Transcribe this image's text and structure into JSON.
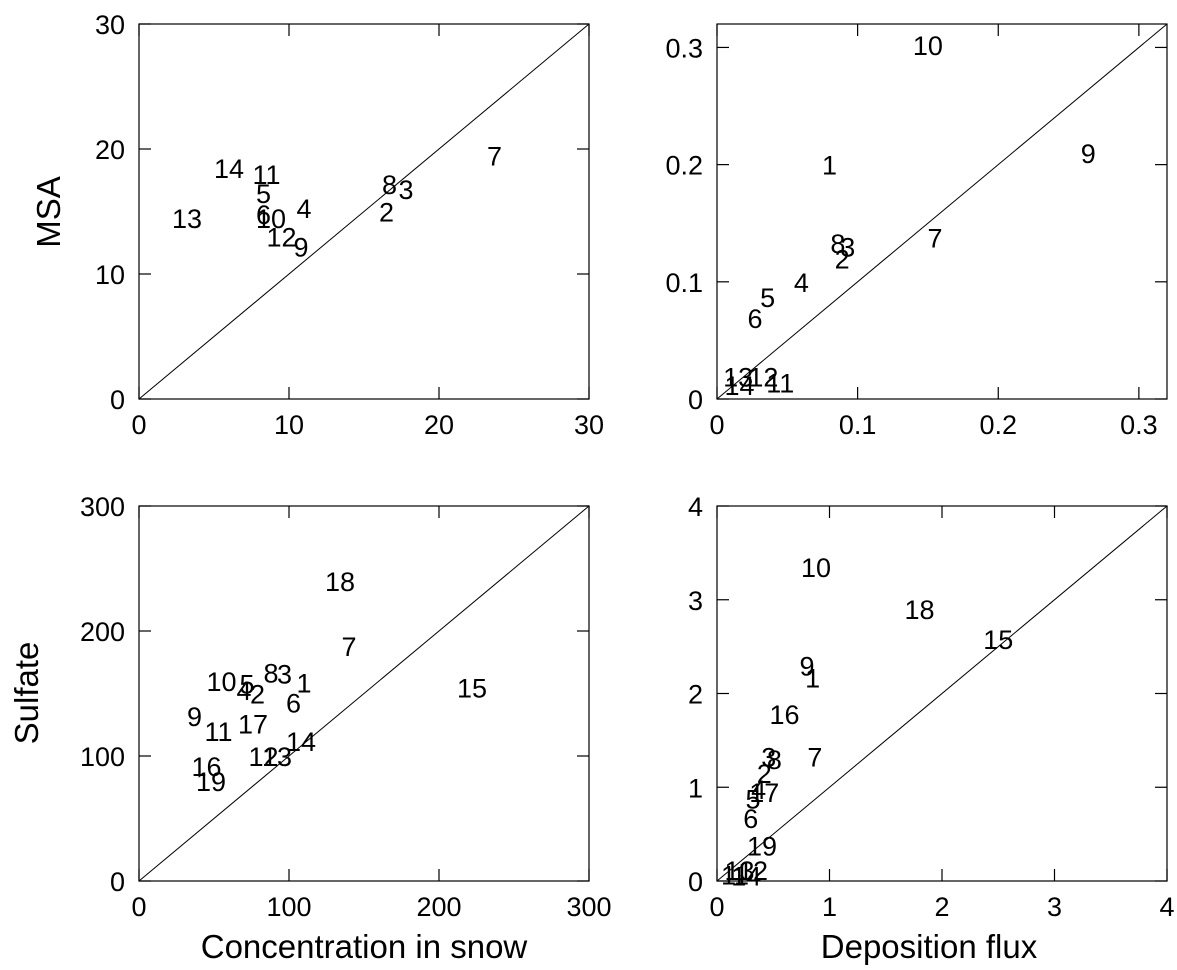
{
  "figure": {
    "row_titles": [
      "MSA",
      "Sulfate"
    ],
    "column_titles": [
      "Concentration in snow",
      "Deposition flux"
    ]
  },
  "chart_data": [
    {
      "type": "scatter",
      "title": "",
      "xlabel": "",
      "ylabel": "MSA",
      "xlim": [
        0,
        30
      ],
      "ylim": [
        0,
        30
      ],
      "xticks": [
        "0",
        "10",
        "20",
        "30"
      ],
      "yticks": [
        "0",
        "10",
        "20",
        "30"
      ],
      "grid": false,
      "reference_line": "1:1",
      "points": [
        {
          "label": "14",
          "x": 6,
          "y": 18.5
        },
        {
          "label": "11",
          "x": 8.5,
          "y": 18
        },
        {
          "label": "5",
          "x": 8.3,
          "y": 16.5
        },
        {
          "label": "13",
          "x": 3.2,
          "y": 14.5
        },
        {
          "label": "6",
          "x": 8.3,
          "y": 14.8
        },
        {
          "label": "10",
          "x": 8.8,
          "y": 14.5
        },
        {
          "label": "4",
          "x": 11,
          "y": 15.3
        },
        {
          "label": "12",
          "x": 9.5,
          "y": 13
        },
        {
          "label": "9",
          "x": 10.8,
          "y": 12.2
        },
        {
          "label": "8",
          "x": 16.7,
          "y": 17.2
        },
        {
          "label": "3",
          "x": 17.8,
          "y": 16.8
        },
        {
          "label": "2",
          "x": 16.5,
          "y": 15
        },
        {
          "label": "7",
          "x": 23.7,
          "y": 19.5
        }
      ]
    },
    {
      "type": "scatter",
      "title": "",
      "xlabel": "",
      "ylabel": "",
      "xlim": [
        0,
        0.32
      ],
      "ylim": [
        0,
        0.32
      ],
      "xticks": [
        "0",
        "0.1",
        "0.2",
        "0.3"
      ],
      "yticks": [
        "0",
        "0.1",
        "0.2",
        "0.3"
      ],
      "grid": false,
      "reference_line": "1:1",
      "points": [
        {
          "label": "10",
          "x": 0.15,
          "y": 0.302
        },
        {
          "label": "1",
          "x": 0.08,
          "y": 0.2
        },
        {
          "label": "9",
          "x": 0.264,
          "y": 0.21
        },
        {
          "label": "8",
          "x": 0.086,
          "y": 0.133
        },
        {
          "label": "3",
          "x": 0.093,
          "y": 0.13
        },
        {
          "label": "2",
          "x": 0.089,
          "y": 0.12
        },
        {
          "label": "7",
          "x": 0.155,
          "y": 0.138
        },
        {
          "label": "4",
          "x": 0.06,
          "y": 0.1
        },
        {
          "label": "5",
          "x": 0.036,
          "y": 0.087
        },
        {
          "label": "6",
          "x": 0.027,
          "y": 0.069
        },
        {
          "label": "13",
          "x": 0.015,
          "y": 0.019
        },
        {
          "label": "12",
          "x": 0.033,
          "y": 0.019
        },
        {
          "label": "14",
          "x": 0.016,
          "y": 0.012
        },
        {
          "label": "11",
          "x": 0.045,
          "y": 0.014
        }
      ]
    },
    {
      "type": "scatter",
      "title": "",
      "xlabel": "Concentration in snow",
      "ylabel": "Sulfate",
      "xlim": [
        0,
        300
      ],
      "ylim": [
        0,
        300
      ],
      "xticks": [
        "0",
        "100",
        "200",
        "300"
      ],
      "yticks": [
        "0",
        "100",
        "200",
        "300"
      ],
      "grid": false,
      "reference_line": "1:1",
      "points": [
        {
          "label": "18",
          "x": 134,
          "y": 240
        },
        {
          "label": "7",
          "x": 140,
          "y": 188
        },
        {
          "label": "15",
          "x": 222,
          "y": 155
        },
        {
          "label": "10",
          "x": 55,
          "y": 160
        },
        {
          "label": "5",
          "x": 72,
          "y": 158
        },
        {
          "label": "4",
          "x": 70,
          "y": 153
        },
        {
          "label": "2",
          "x": 79,
          "y": 150
        },
        {
          "label": "8",
          "x": 88,
          "y": 167
        },
        {
          "label": "3",
          "x": 97,
          "y": 166
        },
        {
          "label": "1",
          "x": 110,
          "y": 159
        },
        {
          "label": "6",
          "x": 103,
          "y": 143
        },
        {
          "label": "9",
          "x": 37,
          "y": 132
        },
        {
          "label": "11",
          "x": 53,
          "y": 120
        },
        {
          "label": "17",
          "x": 76,
          "y": 126
        },
        {
          "label": "14",
          "x": 108,
          "y": 112
        },
        {
          "label": "12",
          "x": 83,
          "y": 100
        },
        {
          "label": "13",
          "x": 92,
          "y": 100
        },
        {
          "label": "16",
          "x": 45,
          "y": 92
        },
        {
          "label": "19",
          "x": 48,
          "y": 80
        }
      ]
    },
    {
      "type": "scatter",
      "title": "",
      "xlabel": "Deposition flux",
      "ylabel": "",
      "xlim": [
        0,
        4
      ],
      "ylim": [
        0,
        4
      ],
      "xticks": [
        "0",
        "1",
        "2",
        "3",
        "4"
      ],
      "yticks": [
        "0",
        "1",
        "2",
        "3",
        "4"
      ],
      "grid": false,
      "reference_line": "1:1",
      "points": [
        {
          "label": "10",
          "x": 0.88,
          "y": 3.35
        },
        {
          "label": "18",
          "x": 1.8,
          "y": 2.9
        },
        {
          "label": "15",
          "x": 2.5,
          "y": 2.58
        },
        {
          "label": "9",
          "x": 0.8,
          "y": 2.3
        },
        {
          "label": "1",
          "x": 0.85,
          "y": 2.17
        },
        {
          "label": "16",
          "x": 0.6,
          "y": 1.78
        },
        {
          "label": "3",
          "x": 0.46,
          "y": 1.33
        },
        {
          "label": "8",
          "x": 0.51,
          "y": 1.3
        },
        {
          "label": "2",
          "x": 0.42,
          "y": 1.15
        },
        {
          "label": "7",
          "x": 0.87,
          "y": 1.33
        },
        {
          "label": "4",
          "x": 0.37,
          "y": 0.98
        },
        {
          "label": "17",
          "x": 0.42,
          "y": 0.95
        },
        {
          "label": "5",
          "x": 0.32,
          "y": 0.88
        },
        {
          "label": "6",
          "x": 0.3,
          "y": 0.67
        },
        {
          "label": "19",
          "x": 0.4,
          "y": 0.38
        },
        {
          "label": "12",
          "x": 0.32,
          "y": 0.12
        },
        {
          "label": "13",
          "x": 0.2,
          "y": 0.12
        },
        {
          "label": "11",
          "x": 0.16,
          "y": 0.07
        },
        {
          "label": "14",
          "x": 0.26,
          "y": 0.06
        }
      ]
    }
  ]
}
